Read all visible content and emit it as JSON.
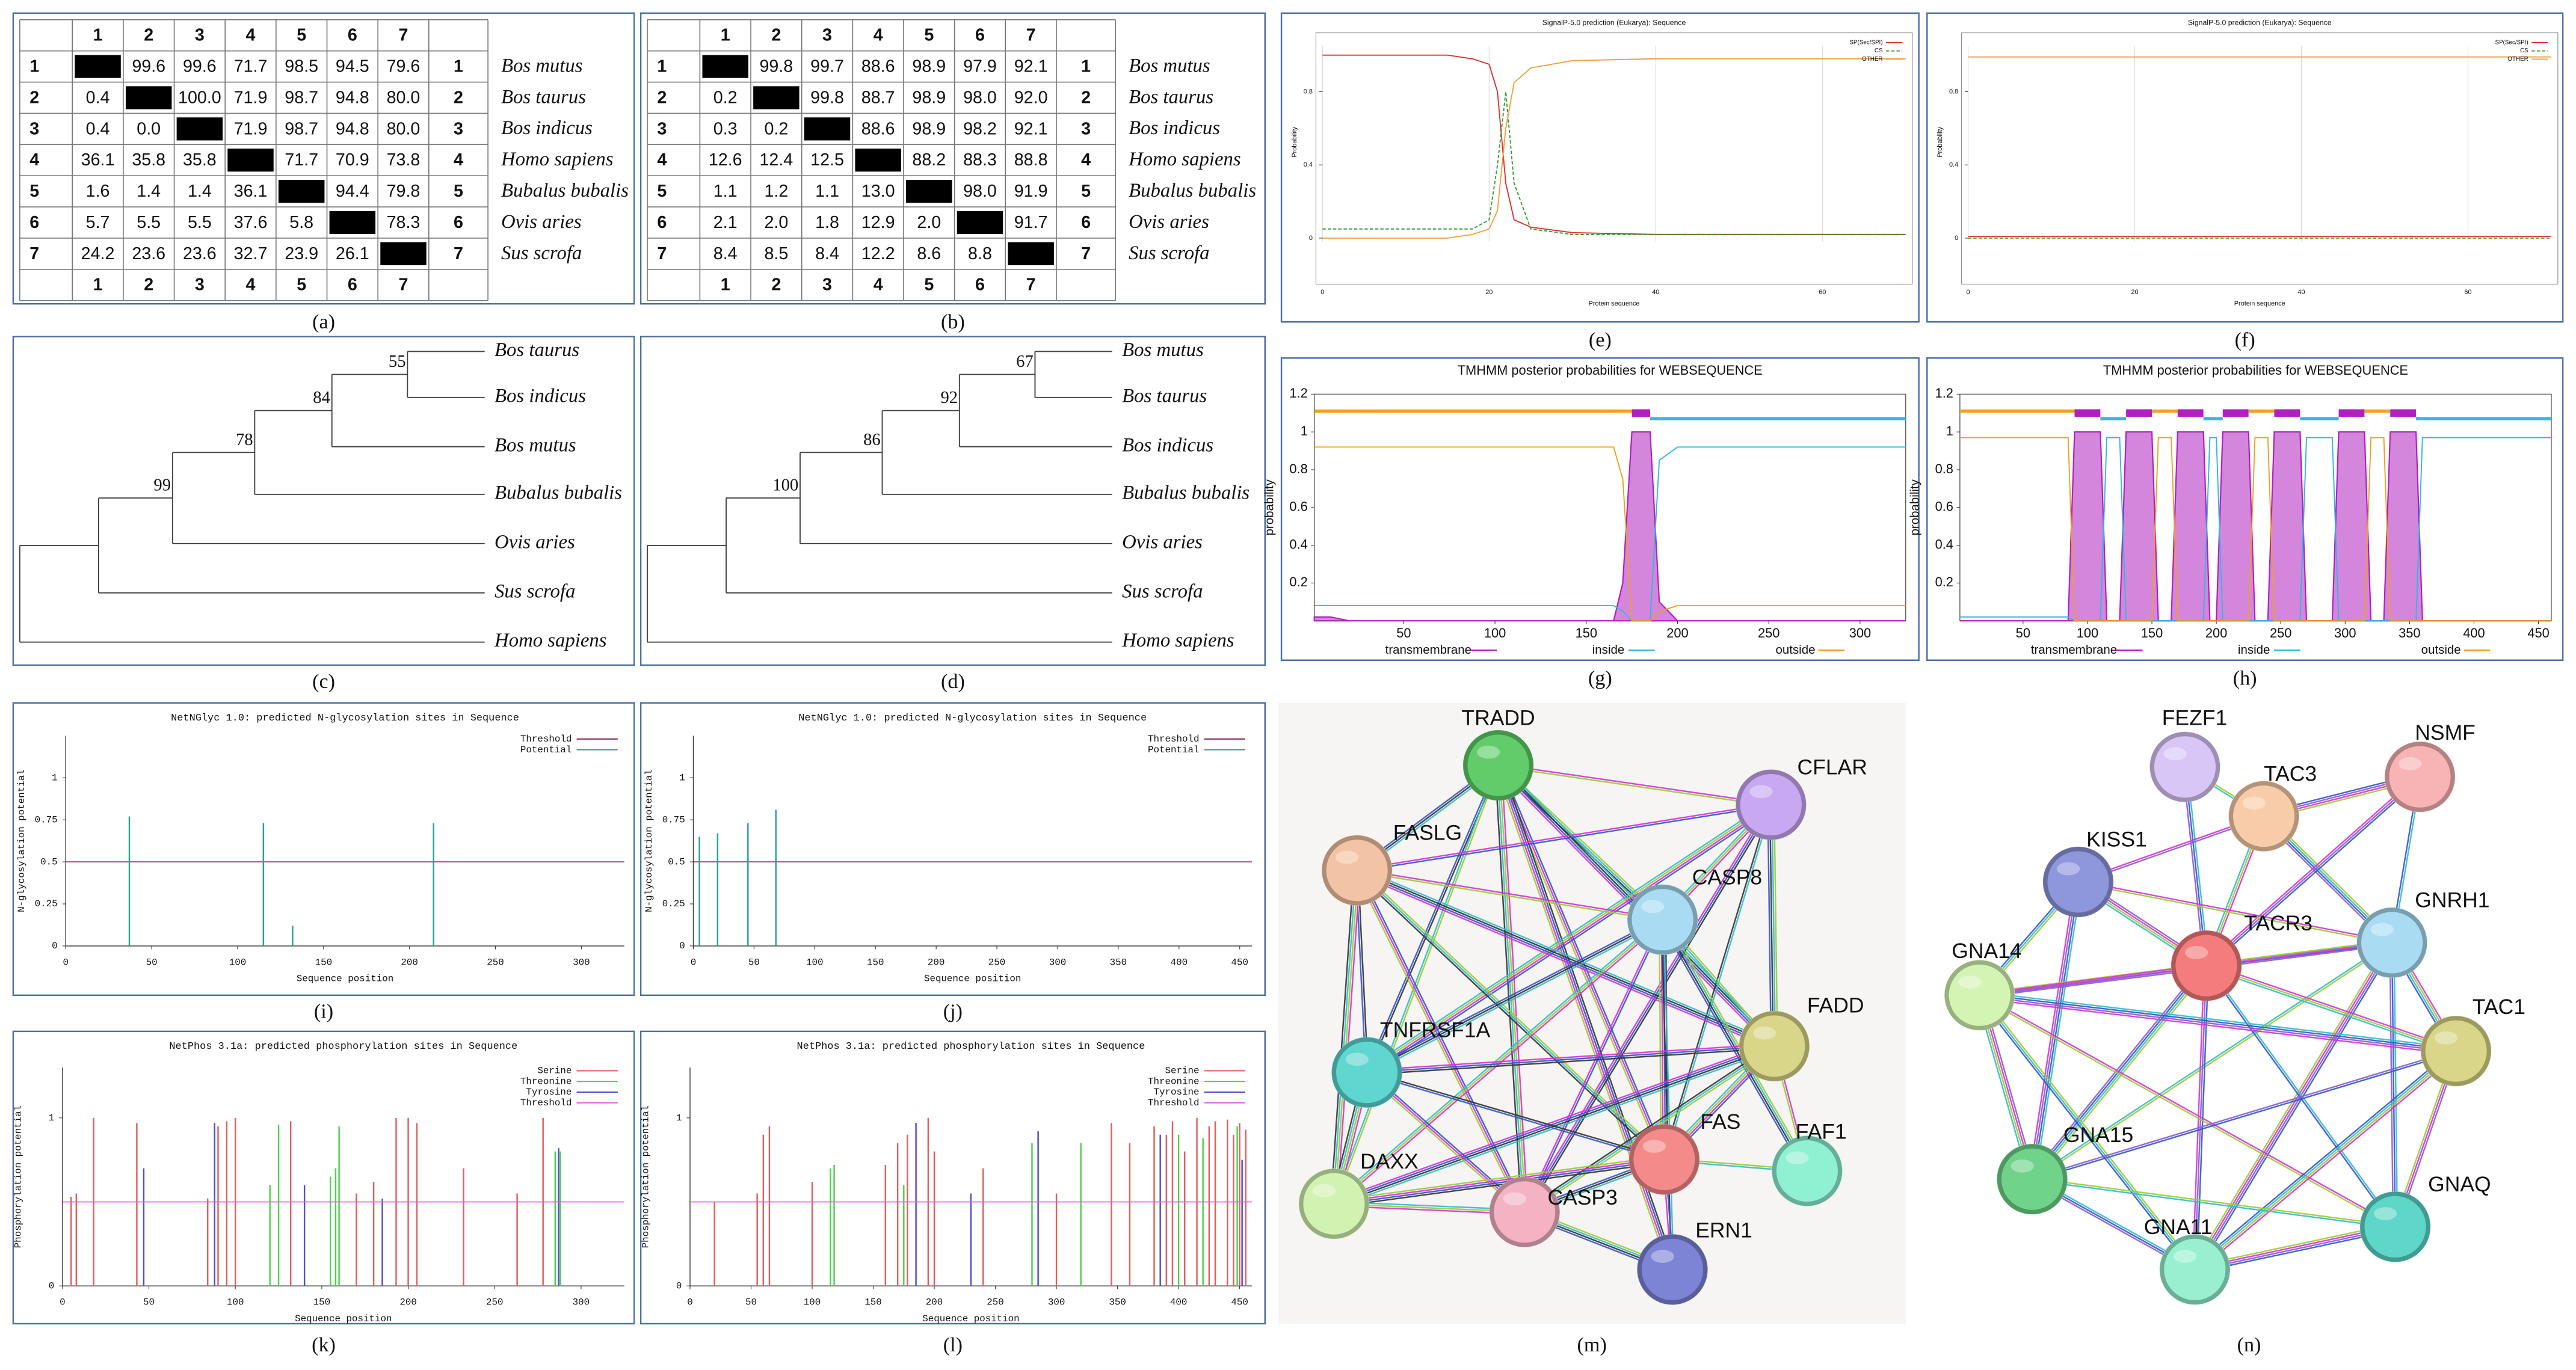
{
  "panel_labels": [
    "(a)",
    "(b)",
    "(c)",
    "(d)",
    "(e)",
    "(f)",
    "(g)",
    "(h)",
    "(i)",
    "(j)",
    "(k)",
    "(l)",
    "(m)",
    "(n)"
  ],
  "identity_tables": [
    {
      "col_headers": [
        "1",
        "2",
        "3",
        "4",
        "5",
        "6",
        "7"
      ],
      "rows": [
        {
          "label": "1",
          "cells": [
            null,
            "99.6",
            "99.6",
            "71.7",
            "98.5",
            "94.5",
            "79.6"
          ],
          "species": "Bos mutus"
        },
        {
          "label": "2",
          "cells": [
            "0.4",
            null,
            "100.0",
            "71.9",
            "98.7",
            "94.8",
            "80.0"
          ],
          "species": "Bos taurus"
        },
        {
          "label": "3",
          "cells": [
            "0.4",
            "0.0",
            null,
            "71.9",
            "98.7",
            "94.8",
            "80.0"
          ],
          "species": "Bos indicus"
        },
        {
          "label": "4",
          "cells": [
            "36.1",
            "35.8",
            "35.8",
            null,
            "71.7",
            "70.9",
            "73.8"
          ],
          "species": "Homo sapiens"
        },
        {
          "label": "5",
          "cells": [
            "1.6",
            "1.4",
            "1.4",
            "36.1",
            null,
            "94.4",
            "79.8"
          ],
          "species": "Bubalus bubalis"
        },
        {
          "label": "6",
          "cells": [
            "5.7",
            "5.5",
            "5.5",
            "37.6",
            "5.8",
            null,
            "78.3"
          ],
          "species": "Ovis aries"
        },
        {
          "label": "7",
          "cells": [
            "24.2",
            "23.6",
            "23.6",
            "32.7",
            "23.9",
            "26.1",
            null
          ],
          "species": "Sus scrofa"
        }
      ]
    },
    {
      "col_headers": [
        "1",
        "2",
        "3",
        "4",
        "5",
        "6",
        "7"
      ],
      "rows": [
        {
          "label": "1",
          "cells": [
            null,
            "99.8",
            "99.7",
            "88.6",
            "98.9",
            "97.9",
            "92.1"
          ],
          "species": "Bos mutus"
        },
        {
          "label": "2",
          "cells": [
            "0.2",
            null,
            "99.8",
            "88.7",
            "98.9",
            "98.0",
            "92.0"
          ],
          "species": "Bos taurus"
        },
        {
          "label": "3",
          "cells": [
            "0.3",
            "0.2",
            null,
            "88.6",
            "98.9",
            "98.2",
            "92.1"
          ],
          "species": "Bos indicus"
        },
        {
          "label": "4",
          "cells": [
            "12.6",
            "12.4",
            "12.5",
            null,
            "88.2",
            "88.3",
            "88.8"
          ],
          "species": "Homo sapiens"
        },
        {
          "label": "5",
          "cells": [
            "1.1",
            "1.2",
            "1.1",
            "13.0",
            null,
            "98.0",
            "91.9"
          ],
          "species": "Bubalus bubalis"
        },
        {
          "label": "6",
          "cells": [
            "2.1",
            "2.0",
            "1.8",
            "12.9",
            "2.0",
            null,
            "91.7"
          ],
          "species": "Ovis aries"
        },
        {
          "label": "7",
          "cells": [
            "8.4",
            "8.5",
            "8.4",
            "12.2",
            "8.6",
            "8.8",
            null
          ],
          "species": "Sus scrofa"
        }
      ]
    }
  ],
  "trees": [
    {
      "leaves": [
        "Bos taurus",
        "Bos indicus",
        "Bos mutus",
        "Bubalus bubalis",
        "Ovis aries",
        "Sus scrofa",
        "Homo sapiens"
      ],
      "bootstrap": [
        55,
        84,
        78,
        99
      ]
    },
    {
      "leaves": [
        "Bos mutus",
        "Bos taurus",
        "Bos indicus",
        "Bubalus bubalis",
        "Ovis aries",
        "Sus scrofa",
        "Homo sapiens"
      ],
      "bootstrap": [
        67,
        92,
        86,
        100
      ]
    }
  ],
  "chart_data": [
    {
      "type": "line",
      "title": "SignalP-5.0 prediction (Eukarya): Sequence",
      "x_label": "Protein sequence",
      "y_label": "Probability",
      "x": [
        0,
        5,
        10,
        15,
        18,
        20,
        21,
        22,
        23,
        25,
        30,
        40,
        50,
        60,
        70
      ],
      "series": [
        {
          "name": "SP(Sec/SPI)",
          "color": "#e03030",
          "values": [
            1,
            1,
            1,
            1,
            0.98,
            0.95,
            0.8,
            0.3,
            0.1,
            0.06,
            0.03,
            0.02,
            0.02,
            0.02,
            0.02
          ]
        },
        {
          "name": "CS",
          "color": "#30a030",
          "dashed": true,
          "values": [
            0.05,
            0.05,
            0.05,
            0.05,
            0.05,
            0.1,
            0.4,
            0.8,
            0.3,
            0.05,
            0.02,
            0.02,
            0.02,
            0.02,
            0.02
          ]
        },
        {
          "name": "OTHER",
          "color": "#f0a040",
          "values": [
            0,
            0,
            0,
            0,
            0.02,
            0.05,
            0.15,
            0.6,
            0.85,
            0.93,
            0.97,
            0.98,
            0.98,
            0.98,
            0.98
          ]
        }
      ],
      "xlim": [
        0,
        70
      ],
      "ylim": [
        0,
        1.05
      ],
      "xticks": [
        0,
        20,
        40,
        60
      ],
      "yticks": [
        0,
        0.4,
        0.8
      ],
      "grid": true
    },
    {
      "type": "line",
      "title": "SignalP-5.0 prediction (Eukarya): Sequence",
      "x_label": "Protein sequence",
      "y_label": "Probability",
      "x": [
        0,
        10,
        20,
        30,
        40,
        50,
        60,
        70
      ],
      "series": [
        {
          "name": "SP(Sec/SPI)",
          "color": "#e03030",
          "values": [
            0.01,
            0.01,
            0.01,
            0.01,
            0.01,
            0.01,
            0.01,
            0.01
          ]
        },
        {
          "name": "CS",
          "color": "#30a030",
          "dashed": true,
          "values": [
            0,
            0,
            0,
            0,
            0,
            0,
            0,
            0
          ]
        },
        {
          "name": "OTHER",
          "color": "#f0a040",
          "values": [
            0.99,
            0.99,
            0.99,
            0.99,
            0.99,
            0.99,
            0.99,
            0.99
          ]
        }
      ],
      "xlim": [
        0,
        70
      ],
      "ylim": [
        0,
        1.05
      ],
      "xticks": [
        0,
        20,
        40,
        60
      ],
      "yticks": [
        0,
        0.4,
        0.8
      ],
      "grid": true
    },
    {
      "type": "tmhmm",
      "title": "TMHMM posterior probabilities for WEBSEQUENCE",
      "y_label": "probability",
      "x": [
        1,
        10,
        20,
        30,
        165,
        170,
        175,
        185,
        190,
        200,
        325
      ],
      "series": [
        {
          "name": "transmembrane",
          "color": "#b020c0",
          "values": [
            0.02,
            0.02,
            0,
            0,
            0,
            0.2,
            1,
            1,
            0.1,
            0,
            0
          ]
        },
        {
          "name": "inside",
          "color": "#30b8e0",
          "values": [
            0.08,
            0.08,
            0.08,
            0.08,
            0.08,
            0.05,
            0,
            0,
            0.85,
            0.92,
            0.92
          ]
        },
        {
          "name": "outside",
          "color": "#f0a020",
          "values": [
            0.92,
            0.92,
            0.92,
            0.92,
            0.92,
            0.75,
            0,
            0,
            0.05,
            0.08,
            0.08
          ]
        }
      ],
      "xlim": [
        1,
        325
      ],
      "ylim": [
        0,
        1.2
      ],
      "xticks": [
        50,
        100,
        150,
        200,
        250,
        300
      ],
      "yticks": [
        0.2,
        0.4,
        0.6,
        0.8,
        1,
        1.2
      ]
    },
    {
      "type": "tmhmm",
      "title": "TMHMM posterior probabilities for WEBSEQUENCE",
      "y_label": "probability",
      "x": [
        1,
        85,
        90,
        110,
        115,
        125,
        130,
        150,
        155,
        165,
        170,
        190,
        195,
        200,
        205,
        225,
        230,
        240,
        245,
        265,
        270,
        290,
        295,
        315,
        320,
        330,
        335,
        355,
        360,
        460
      ],
      "series": [
        {
          "name": "transmembrane",
          "color": "#b020c0",
          "values": [
            0,
            0,
            1,
            1,
            0,
            0,
            1,
            1,
            0,
            0,
            1,
            1,
            0,
            0,
            1,
            1,
            0,
            0,
            1,
            1,
            0,
            0,
            1,
            1,
            0,
            0,
            1,
            1,
            0,
            0
          ]
        },
        {
          "name": "inside",
          "color": "#30b8e0",
          "values": [
            0.02,
            0.02,
            0,
            0,
            0.97,
            0.97,
            0,
            0,
            0,
            0,
            0,
            0,
            0.97,
            0.97,
            0,
            0,
            0,
            0,
            0,
            0,
            0.97,
            0.97,
            0,
            0,
            0,
            0,
            0,
            0,
            0.97,
            0.97
          ]
        },
        {
          "name": "outside",
          "color": "#f0a020",
          "values": [
            0.97,
            0.97,
            0,
            0,
            0,
            0,
            0,
            0,
            0.97,
            0.97,
            0,
            0,
            0,
            0,
            0,
            0,
            0.97,
            0.97,
            0,
            0,
            0,
            0,
            0,
            0,
            0.97,
            0.97,
            0,
            0,
            0,
            0
          ]
        }
      ],
      "xlim": [
        1,
        460
      ],
      "ylim": [
        0,
        1.2
      ],
      "xticks": [
        50,
        100,
        150,
        200,
        250,
        300,
        350,
        400,
        450
      ],
      "yticks": [
        0.2,
        0.4,
        0.6,
        0.8,
        1,
        1.2
      ]
    },
    {
      "type": "stem",
      "title": "NetNGlyc 1.0: predicted N-glycosylation sites in Sequence",
      "x_label": "Sequence position",
      "y_label": "N-glycosylation potential",
      "series": [
        {
          "name": "Threshold",
          "color": "#8b2a6b",
          "threshold": 0.5
        },
        {
          "name": "Potential",
          "color": "#2aa198",
          "x": [
            37,
            115,
            132,
            214
          ],
          "values": [
            0.77,
            0.73,
            0.12,
            0.73
          ]
        }
      ],
      "xlim": [
        0,
        325
      ],
      "ylim": [
        0,
        1.25
      ],
      "xticks": [
        0,
        50,
        100,
        150,
        200,
        250,
        300
      ],
      "yticks": [
        0,
        0.25,
        0.5,
        0.75,
        1
      ]
    },
    {
      "type": "stem",
      "title": "NetNGlyc 1.0: predicted N-glycosylation sites in Sequence",
      "x_label": "Sequence position",
      "y_label": "N-glycosylation potential",
      "series": [
        {
          "name": "Threshold",
          "color": "#8b2a6b",
          "threshold": 0.5
        },
        {
          "name": "Potential",
          "color": "#2aa198",
          "x": [
            5,
            20,
            45,
            68
          ],
          "values": [
            0.65,
            0.67,
            0.73,
            0.81
          ]
        }
      ],
      "xlim": [
        0,
        460
      ],
      "ylim": [
        0,
        1.25
      ],
      "xticks": [
        0,
        50,
        100,
        150,
        200,
        250,
        300,
        350,
        400,
        450
      ],
      "yticks": [
        0,
        0.25,
        0.5,
        0.75,
        1
      ]
    },
    {
      "type": "stem",
      "title": "NetPhos 3.1a: predicted phosphorylation sites in Sequence",
      "x_label": "Sequence position",
      "y_label": "Phosphorylation potential",
      "series": [
        {
          "name": "Serine",
          "color": "#e06060",
          "x": [
            5,
            8,
            18,
            43,
            84,
            90,
            95,
            100,
            132,
            170,
            180,
            193,
            200,
            205,
            232,
            263,
            278
          ],
          "values": [
            0.53,
            0.55,
            1,
            0.97,
            0.52,
            0.95,
            0.98,
            1,
            0.98,
            0.55,
            0.62,
            1,
            1,
            0.97,
            0.7,
            0.55,
            1
          ]
        },
        {
          "name": "Threonine",
          "color": "#50d050",
          "x": [
            120,
            125,
            155,
            158,
            160,
            285,
            288
          ],
          "values": [
            0.6,
            0.96,
            0.65,
            0.7,
            0.95,
            0.8,
            0.8
          ]
        },
        {
          "name": "Tyrosine",
          "color": "#5050c8",
          "x": [
            47,
            88,
            140,
            185,
            287
          ],
          "values": [
            0.7,
            0.97,
            0.6,
            0.52,
            0.82
          ]
        },
        {
          "name": "Threshold",
          "color": "#e060e0",
          "threshold": 0.5
        }
      ],
      "xlim": [
        0,
        325
      ],
      "ylim": [
        0,
        1.3
      ],
      "xticks": [
        0,
        50,
        100,
        150,
        200,
        250,
        300
      ],
      "yticks": [
        0,
        1
      ]
    },
    {
      "type": "stem",
      "title": "NetPhos 3.1a: predicted phosphorylation sites in Sequence",
      "x_label": "Sequence position",
      "y_label": "Phosphorylation potential",
      "series": [
        {
          "name": "Serine",
          "color": "#e06060",
          "x": [
            20,
            55,
            60,
            65,
            100,
            160,
            170,
            178,
            195,
            200,
            240,
            300,
            345,
            360,
            380,
            390,
            395,
            405,
            415,
            425,
            430,
            440,
            445,
            450,
            455
          ],
          "values": [
            0.5,
            0.55,
            0.9,
            0.95,
            0.62,
            0.72,
            0.85,
            0.9,
            1,
            0.8,
            0.7,
            0.55,
            0.97,
            0.85,
            0.95,
            0.9,
            0.98,
            0.8,
            1,
            0.95,
            0.98,
            0.99,
            0.9,
            0.97,
            0.93
          ]
        },
        {
          "name": "Threonine",
          "color": "#50d050",
          "x": [
            115,
            118,
            175,
            280,
            320,
            400,
            420,
            448
          ],
          "values": [
            0.7,
            0.72,
            0.6,
            0.85,
            0.85,
            0.9,
            0.88,
            0.95
          ]
        },
        {
          "name": "Tyrosine",
          "color": "#5050c8",
          "x": [
            185,
            230,
            285,
            385,
            452
          ],
          "values": [
            0.97,
            0.55,
            0.92,
            0.9,
            0.75
          ]
        },
        {
          "name": "Threshold",
          "color": "#e060e0",
          "threshold": 0.5
        }
      ],
      "xlim": [
        0,
        460
      ],
      "ylim": [
        0,
        1.3
      ],
      "xticks": [
        0,
        50,
        100,
        150,
        200,
        250,
        300,
        350,
        400,
        450
      ],
      "yticks": [
        0,
        1
      ]
    }
  ],
  "networks": [
    {
      "nodes": [
        {
          "label": "TRADD",
          "color": "#62cc6a"
        },
        {
          "label": "CFLAR",
          "color": "#c8a8f0"
        },
        {
          "label": "FASLG",
          "color": "#f2c3a4"
        },
        {
          "label": "CASP8",
          "color": "#a9dcf2"
        },
        {
          "label": "FADD",
          "color": "#d9d68a"
        },
        {
          "label": "TNFRSF1A",
          "color": "#5fd6d0"
        },
        {
          "label": "FAS",
          "color": "#f58a8a"
        },
        {
          "label": "FAF1",
          "color": "#8ff0d2"
        },
        {
          "label": "DAXX",
          "color": "#d2f2b2"
        },
        {
          "label": "CASP3",
          "color": "#f3b3c3"
        },
        {
          "label": "ERN1",
          "color": "#7d84d6"
        }
      ]
    },
    {
      "nodes": [
        {
          "label": "FEZF1",
          "color": "#d8c6f6"
        },
        {
          "label": "TAC3",
          "color": "#f8cca8"
        },
        {
          "label": "NSMF",
          "color": "#f8b4b4"
        },
        {
          "label": "KISS1",
          "color": "#8e96dc"
        },
        {
          "label": "GNRH1",
          "color": "#a9dcf2"
        },
        {
          "label": "TACR3",
          "color": "#f47c7c"
        },
        {
          "label": "GNA14",
          "color": "#d4f4b4"
        },
        {
          "label": "TAC1",
          "color": "#d9d68a"
        },
        {
          "label": "GNA15",
          "color": "#6fd38a"
        },
        {
          "label": "GNAQ",
          "color": "#5ed6c8"
        },
        {
          "label": "GNA11",
          "color": "#98f0d0"
        }
      ]
    }
  ]
}
